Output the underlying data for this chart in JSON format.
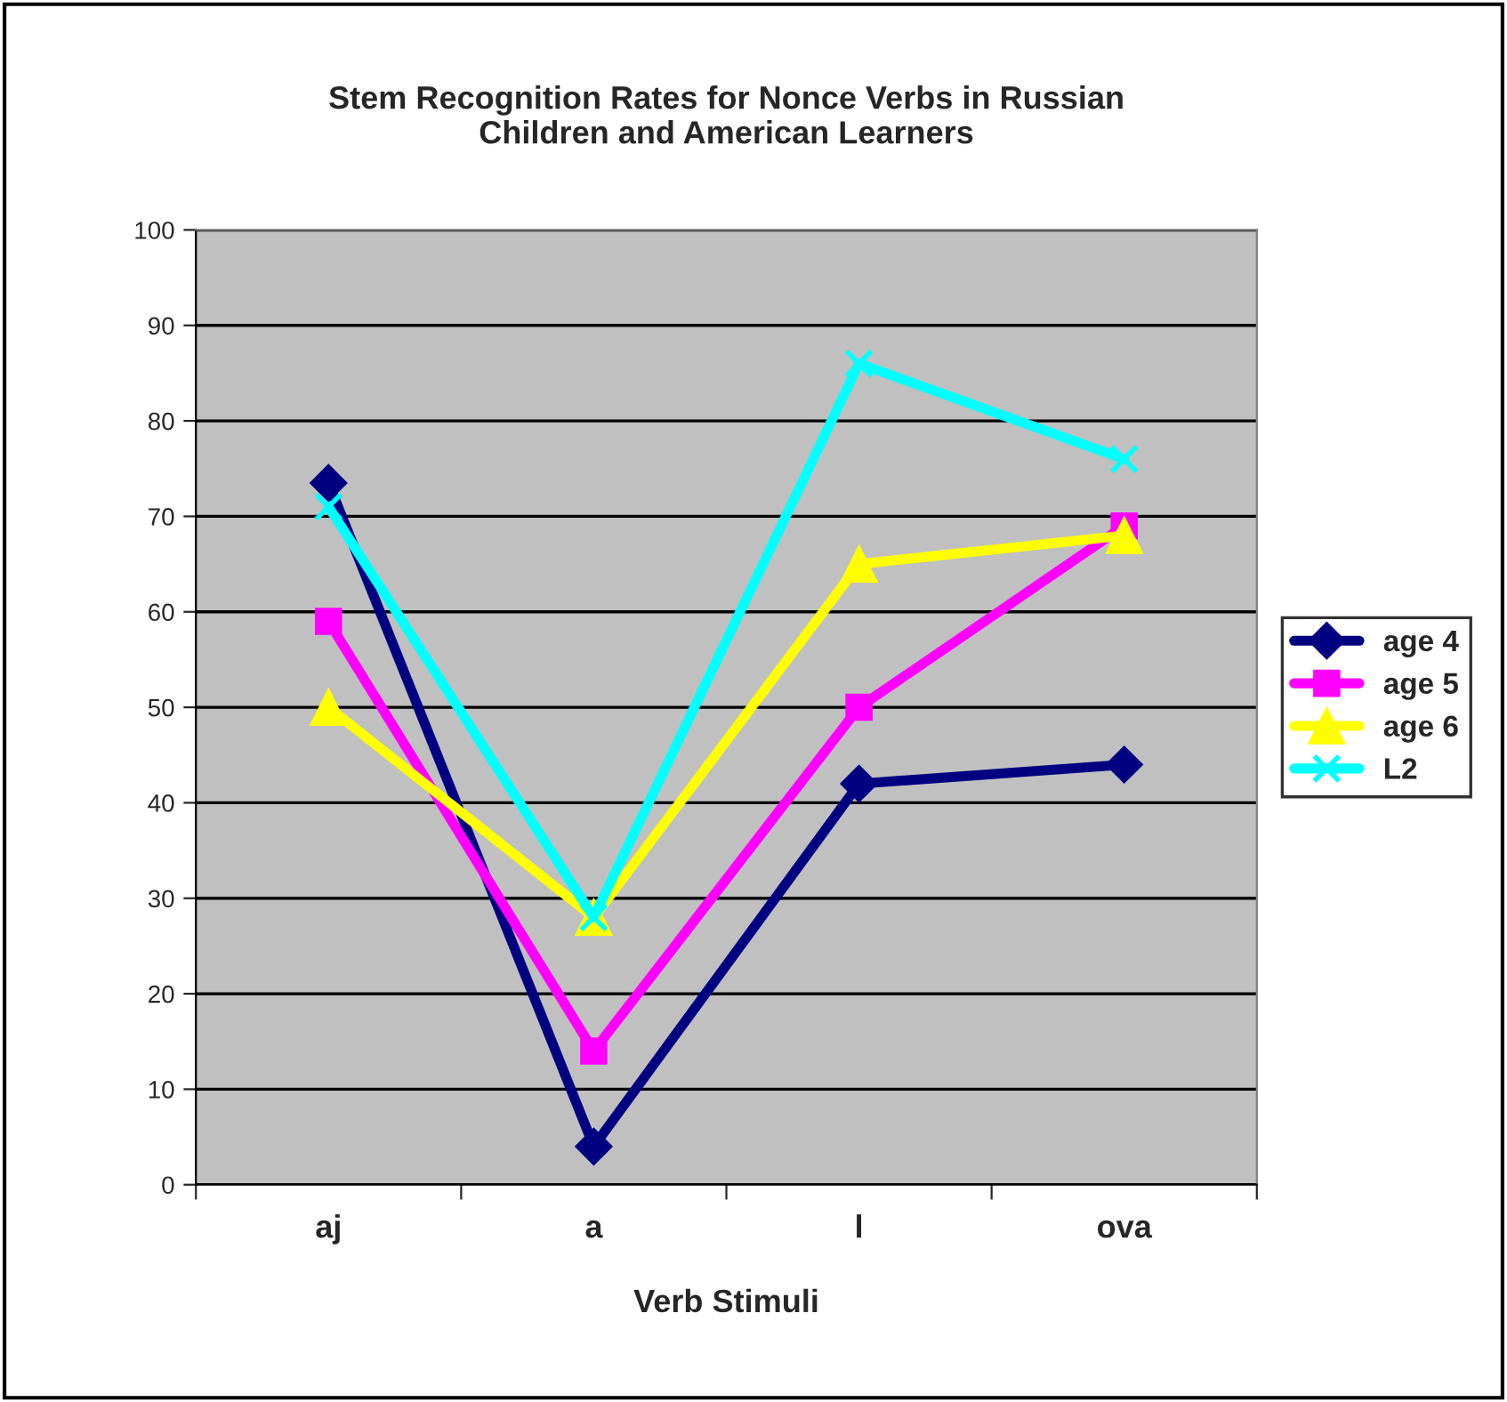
{
  "chart_data": {
    "type": "line",
    "title": "Stem Recognition Rates for Nonce Verbs in Russian\nChildren and American Learners",
    "xlabel": "Verb Stimuli",
    "categories": [
      "aj",
      "a",
      "l",
      "ova"
    ],
    "series": [
      {
        "name": "age 4",
        "color": "#000080",
        "marker": "diamond",
        "values": [
          73.5,
          4,
          42,
          44
        ]
      },
      {
        "name": "age 5",
        "color": "#ff00ff",
        "marker": "square",
        "values": [
          59,
          14,
          50,
          69
        ]
      },
      {
        "name": "age 6",
        "color": "#ffff00",
        "marker": "triangle",
        "values": [
          50,
          28,
          65,
          68
        ]
      },
      {
        "name": "L2",
        "color": "#00ffff",
        "marker": "cross",
        "values": [
          71,
          28,
          86,
          76
        ]
      }
    ],
    "ylim": [
      0,
      100
    ],
    "yticks": [
      0,
      10,
      20,
      30,
      40,
      50,
      60,
      70,
      80,
      90,
      100
    ],
    "grid": "y",
    "legend": "right"
  }
}
